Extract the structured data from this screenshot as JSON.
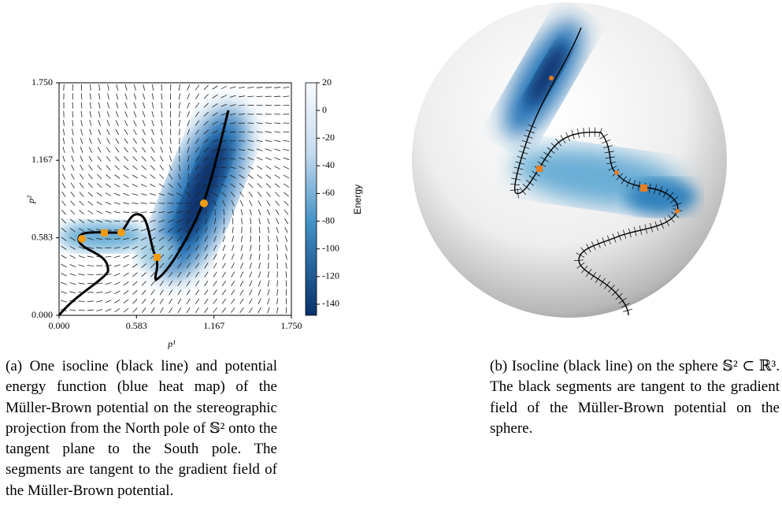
{
  "panel_a": {
    "x_label": "p¹",
    "y_label": "p²",
    "colorbar_label": "Energy",
    "xlim": [
      0,
      1.75
    ],
    "ylim": [
      0,
      1.75
    ],
    "xticks": [
      {
        "value": 0,
        "label": "0.000"
      },
      {
        "value": 0.583,
        "label": "0.583"
      },
      {
        "value": 1.167,
        "label": "1.167"
      },
      {
        "value": 1.75,
        "label": "1.750"
      }
    ],
    "yticks": [
      {
        "value": 0,
        "label": "0.000"
      },
      {
        "value": 0.583,
        "label": "0.583"
      },
      {
        "value": 1.167,
        "label": "1.167"
      },
      {
        "value": 1.75,
        "label": "1.750"
      }
    ],
    "clim": [
      -148,
      20
    ],
    "cticks": [
      20,
      0,
      -20,
      -40,
      -60,
      -80,
      -100,
      -120,
      -140
    ],
    "caption": "(a) One isocline (black line) and potential energy function (blue heat map) of the Müller-Brown potential on the stereographic projection from the North pole of 𝕊² onto the tangent plane to the South pole. The segments are tangent to the gradient field of the Müller-Brown potential."
  },
  "panel_b": {
    "caption": "(b) Isocline (black line) on the sphere 𝕊² ⊂ ℝ³. The black segments are tangent to the gradient field of the Müller-Brown potential on the sphere."
  }
}
